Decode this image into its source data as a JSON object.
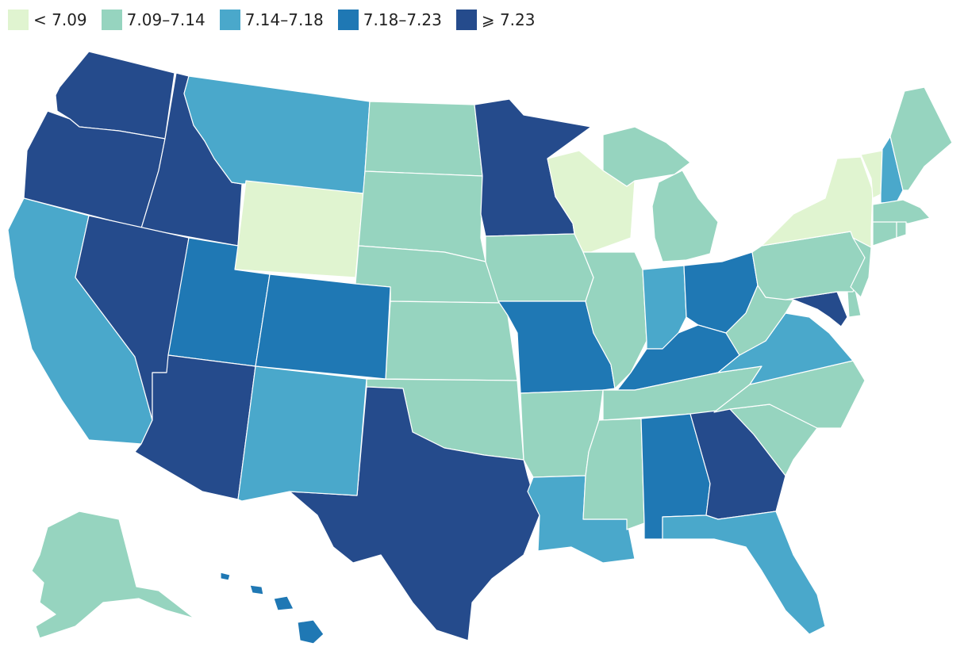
{
  "legend": [
    {
      "label": "< 7.09",
      "color": "#e0f4d0"
    },
    {
      "label": "7.09–7.14",
      "color": "#96d4bf"
    },
    {
      "label": "7.14–7.18",
      "color": "#4aa8cb"
    },
    {
      "label": "7.18–7.23",
      "color": "#1f78b4"
    },
    {
      "label": "⩾ 7.23",
      "color": "#254b8c"
    }
  ],
  "states": {
    "WA": 4,
    "OR": 4,
    "ID": 4,
    "NV": 4,
    "AZ": 4,
    "TX": 4,
    "MN": 4,
    "GA": 4,
    "MD": 4,
    "UT": 3,
    "CO": 3,
    "MO": 3,
    "OH": 3,
    "KY": 3,
    "AL": 3,
    "HI": 3,
    "MT": 2,
    "CA": 2,
    "NM": 2,
    "LA": 2,
    "FL": 2,
    "IN": 2,
    "VA": 2,
    "NH": 2,
    "ND": 1,
    "SD": 1,
    "NE": 1,
    "KS": 1,
    "OK": 1,
    "AR": 1,
    "MS": 1,
    "TN": 1,
    "IL": 1,
    "IA": 1,
    "MI": 1,
    "WV": 1,
    "PA": 1,
    "NC": 1,
    "SC": 1,
    "ME": 1,
    "MA": 1,
    "CT": 1,
    "NJ": 1,
    "DE": 1,
    "AK": 1,
    "RI": 1,
    "WY": 0,
    "WI": 0,
    "NY": 0,
    "VT": 0
  }
}
